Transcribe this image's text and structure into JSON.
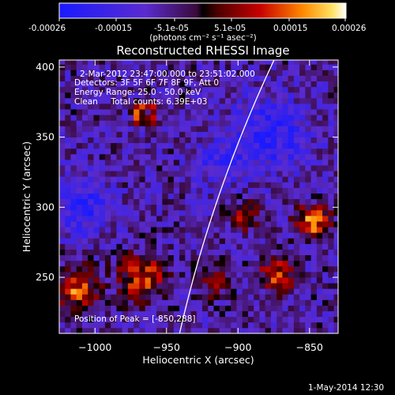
{
  "colorbar": {
    "tick_labels": [
      "-0.00026",
      "-0.00015",
      "-5.1e-05",
      "5.1e-05",
      "0.00015",
      "0.00026"
    ],
    "units_label": "(photons cm⁻² s⁻¹ asec⁻²)",
    "range": [
      -0.00026,
      0.00026
    ]
  },
  "chart_data": {
    "type": "heatmap",
    "title": "Reconstructed RHESSI Image",
    "xlabel": "Heliocentric X (arcsec)",
    "ylabel": "Heliocentric Y (arcsec)",
    "xlim": [
      -1025,
      -830
    ],
    "ylim": [
      210,
      405
    ],
    "x_ticks": [
      -1000,
      -950,
      -900,
      -850
    ],
    "y_ticks": [
      250,
      300,
      350,
      400
    ],
    "x_tick_labels": [
      "−1000",
      "−950",
      "−900",
      "−850"
    ],
    "y_tick_labels": [
      "250",
      "300",
      "350",
      "400"
    ],
    "annotations": [
      "2-Mar-2012 23:47:00.000 to 23:51:02.000",
      "Detectors: 3F 5F 6F 7F 8F 9F, Att 0",
      "Energy Range: 25.0 - 50.0 keV",
      "Clean     Total counts: 6.39E+03"
    ],
    "peak_label": "Position of Peak = [-850,288]",
    "peak_position": [
      -850,
      288
    ],
    "sources": [
      {
        "x": -967,
        "y": 365,
        "sigma": 6,
        "amp": 0.00018,
        "ring": true
      },
      {
        "x": -898,
        "y": 292,
        "sigma": 7,
        "amp": 0.00017
      },
      {
        "x": -850,
        "y": 288,
        "sigma": 8,
        "amp": 0.00026
      },
      {
        "x": -1015,
        "y": 240,
        "sigma": 10,
        "amp": 0.00022
      },
      {
        "x": -970,
        "y": 248,
        "sigma": 12,
        "amp": 0.0002
      },
      {
        "x": -920,
        "y": 245,
        "sigma": 8,
        "amp": 0.00012
      },
      {
        "x": -875,
        "y": 250,
        "sigma": 9,
        "amp": 0.00019
      },
      {
        "x": -1010,
        "y": 298,
        "sigma": 12,
        "amp": -0.00015
      },
      {
        "x": -880,
        "y": 350,
        "sigma": 18,
        "amp": -0.00014
      },
      {
        "x": -915,
        "y": 330,
        "sigma": 12,
        "amp": -0.0001
      }
    ],
    "limb_arc": {
      "center": [
        0,
        0
      ],
      "radius_arcsec": 964
    }
  },
  "footer": {
    "date": "1-May-2014 12:30"
  }
}
